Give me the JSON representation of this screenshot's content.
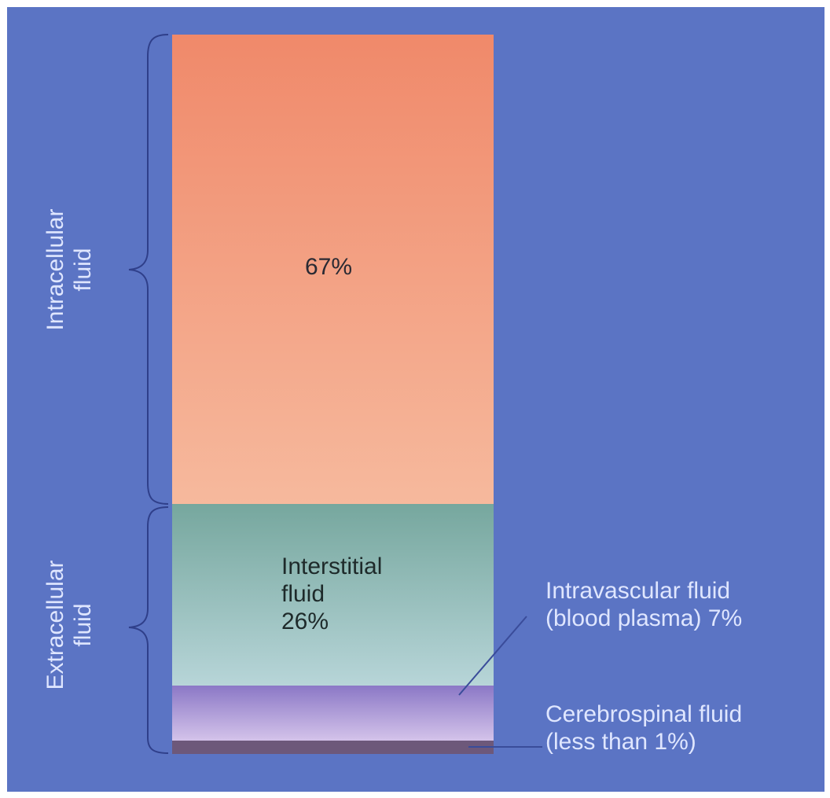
{
  "colors": {
    "background": "#5b74c4",
    "intracellular_top": "#f0896a",
    "intracellular_bottom": "#f6b99d",
    "interstitial_top": "#76a79e",
    "interstitial_bottom": "#b7d5d8",
    "intravascular_top": "#8b78c6",
    "intravascular_bottom": "#d4c3ea",
    "cerebrospinal": "#6d587a",
    "label_light": "#dfe6ff",
    "label_dark": "#2a2a33"
  },
  "groups": {
    "intracellular": [
      "Intracellular",
      "fluid"
    ],
    "extracellular": [
      "Extracellular",
      "fluid"
    ]
  },
  "segments": {
    "intracellular_value": "67%",
    "interstitial": [
      "Interstitial",
      "fluid",
      "26%"
    ],
    "intravascular": [
      "Intravascular fluid",
      "(blood plasma) 7%"
    ],
    "cerebrospinal": [
      "Cerebrospinal fluid",
      "(less than 1%)"
    ]
  }
}
